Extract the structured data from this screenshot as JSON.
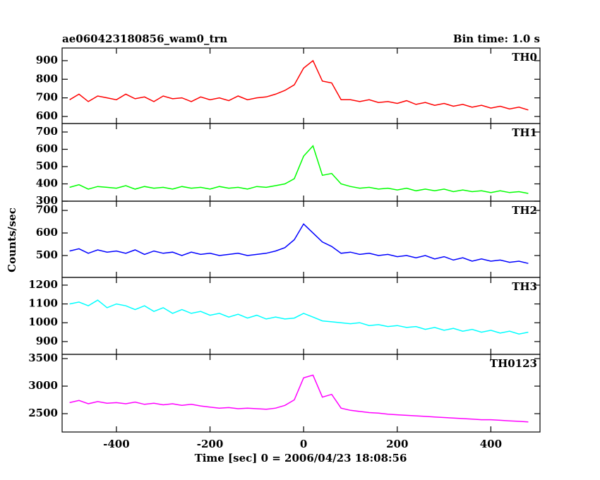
{
  "chart_data": [
    {
      "type": "line",
      "title": "ae060423180856_wam0_trn",
      "subtitle": "Bin time: 1.0 s",
      "x": [
        -500,
        -480,
        -460,
        -440,
        -420,
        -400,
        -380,
        -360,
        -340,
        -320,
        -300,
        -280,
        -260,
        -240,
        -220,
        -200,
        -180,
        -160,
        -140,
        -120,
        -100,
        -80,
        -60,
        -40,
        -20,
        0,
        20,
        40,
        60,
        80,
        100,
        120,
        140,
        160,
        180,
        200,
        220,
        240,
        260,
        280,
        300,
        320,
        340,
        360,
        380,
        400,
        420,
        440,
        460,
        480
      ],
      "xlim": [
        -516,
        505
      ],
      "ylim": [
        562,
        968
      ],
      "yticks": [
        600,
        700,
        800,
        900
      ],
      "series": [
        {
          "name": "TH0",
          "color": "#ff0000",
          "values": [
            690,
            720,
            680,
            710,
            700,
            690,
            720,
            695,
            705,
            680,
            710,
            695,
            700,
            680,
            705,
            690,
            700,
            685,
            710,
            690,
            700,
            705,
            720,
            740,
            770,
            860,
            900,
            790,
            780,
            690,
            690,
            680,
            690,
            675,
            680,
            670,
            685,
            665,
            675,
            660,
            670,
            655,
            665,
            650,
            660,
            645,
            655,
            640,
            650,
            635
          ]
        }
      ]
    },
    {
      "type": "line",
      "x": [
        -500,
        -480,
        -460,
        -440,
        -420,
        -400,
        -380,
        -360,
        -340,
        -320,
        -300,
        -280,
        -260,
        -240,
        -220,
        -200,
        -180,
        -160,
        -140,
        -120,
        -100,
        -80,
        -60,
        -40,
        -20,
        0,
        20,
        40,
        60,
        80,
        100,
        120,
        140,
        160,
        180,
        200,
        220,
        240,
        260,
        280,
        300,
        320,
        340,
        360,
        380,
        400,
        420,
        440,
        460,
        480
      ],
      "xlim": [
        -516,
        505
      ],
      "ylim": [
        300,
        749
      ],
      "yticks": [
        300,
        400,
        500,
        600,
        700
      ],
      "series": [
        {
          "name": "TH1",
          "color": "#00ff00",
          "values": [
            380,
            395,
            370,
            385,
            380,
            375,
            390,
            370,
            385,
            375,
            380,
            370,
            385,
            375,
            380,
            370,
            385,
            375,
            380,
            370,
            385,
            380,
            390,
            400,
            430,
            560,
            620,
            450,
            460,
            400,
            385,
            375,
            380,
            370,
            375,
            365,
            375,
            360,
            370,
            360,
            370,
            355,
            365,
            355,
            360,
            350,
            360,
            350,
            355,
            345
          ]
        }
      ]
    },
    {
      "type": "line",
      "ylabel": "Counts/sec",
      "x": [
        -500,
        -480,
        -460,
        -440,
        -420,
        -400,
        -380,
        -360,
        -340,
        -320,
        -300,
        -280,
        -260,
        -240,
        -220,
        -200,
        -180,
        -160,
        -140,
        -120,
        -100,
        -80,
        -60,
        -40,
        -20,
        0,
        20,
        40,
        60,
        80,
        100,
        120,
        140,
        160,
        180,
        200,
        220,
        240,
        260,
        280,
        300,
        320,
        340,
        360,
        380,
        400,
        420,
        440,
        460,
        480
      ],
      "xlim": [
        -516,
        505
      ],
      "ylim": [
        403,
        741
      ],
      "yticks": [
        500,
        600,
        700
      ],
      "series": [
        {
          "name": "TH2",
          "color": "#0000ff",
          "values": [
            520,
            530,
            510,
            525,
            515,
            520,
            510,
            525,
            505,
            520,
            510,
            515,
            500,
            515,
            505,
            510,
            500,
            505,
            510,
            500,
            505,
            510,
            520,
            535,
            570,
            640,
            600,
            560,
            540,
            510,
            515,
            505,
            510,
            500,
            505,
            495,
            500,
            490,
            500,
            485,
            495,
            480,
            490,
            475,
            485,
            475,
            480,
            470,
            475,
            465
          ]
        }
      ]
    },
    {
      "type": "line",
      "x": [
        -500,
        -480,
        -460,
        -440,
        -420,
        -400,
        -380,
        -360,
        -340,
        -320,
        -300,
        -280,
        -260,
        -240,
        -220,
        -200,
        -180,
        -160,
        -140,
        -120,
        -100,
        -80,
        -60,
        -40,
        -20,
        0,
        20,
        40,
        60,
        80,
        100,
        120,
        140,
        160,
        180,
        200,
        220,
        240,
        260,
        280,
        300,
        320,
        340,
        360,
        380,
        400,
        420,
        440,
        460,
        480
      ],
      "xlim": [
        -516,
        505
      ],
      "ylim": [
        832,
        1241
      ],
      "yticks": [
        900,
        1000,
        1100,
        1200
      ],
      "series": [
        {
          "name": "TH3",
          "color": "#00ffff",
          "values": [
            1100,
            1110,
            1090,
            1120,
            1080,
            1100,
            1090,
            1070,
            1090,
            1060,
            1080,
            1050,
            1070,
            1050,
            1060,
            1040,
            1050,
            1030,
            1045,
            1025,
            1040,
            1020,
            1030,
            1020,
            1025,
            1050,
            1030,
            1010,
            1005,
            1000,
            995,
            1000,
            985,
            990,
            980,
            985,
            975,
            980,
            965,
            975,
            960,
            970,
            955,
            965,
            950,
            960,
            945,
            955,
            940,
            950
          ]
        }
      ]
    },
    {
      "type": "line",
      "xlabel": "Time [sec] 0 = 2006/04/23 18:08:56",
      "x": [
        -500,
        -480,
        -460,
        -440,
        -420,
        -400,
        -380,
        -360,
        -340,
        -320,
        -300,
        -280,
        -260,
        -240,
        -220,
        -200,
        -180,
        -160,
        -140,
        -120,
        -100,
        -80,
        -60,
        -40,
        -20,
        0,
        20,
        40,
        60,
        80,
        100,
        120,
        140,
        160,
        180,
        200,
        220,
        240,
        260,
        280,
        300,
        320,
        340,
        360,
        380,
        400,
        420,
        440,
        460,
        480
      ],
      "xlim": [
        -516,
        505
      ],
      "xticks": [
        -400,
        -200,
        0,
        200,
        400
      ],
      "ylim": [
        2167,
        3577
      ],
      "yticks": [
        2500,
        3000,
        3500
      ],
      "series": [
        {
          "name": "TH0123",
          "color": "#ff00ff",
          "values": [
            2700,
            2740,
            2680,
            2720,
            2690,
            2700,
            2680,
            2710,
            2670,
            2690,
            2660,
            2680,
            2650,
            2670,
            2640,
            2620,
            2600,
            2610,
            2590,
            2600,
            2590,
            2580,
            2600,
            2650,
            2750,
            3150,
            3200,
            2800,
            2850,
            2600,
            2560,
            2540,
            2520,
            2510,
            2490,
            2480,
            2470,
            2460,
            2450,
            2440,
            2430,
            2420,
            2410,
            2400,
            2390,
            2390,
            2380,
            2370,
            2360,
            2350
          ]
        }
      ]
    }
  ]
}
